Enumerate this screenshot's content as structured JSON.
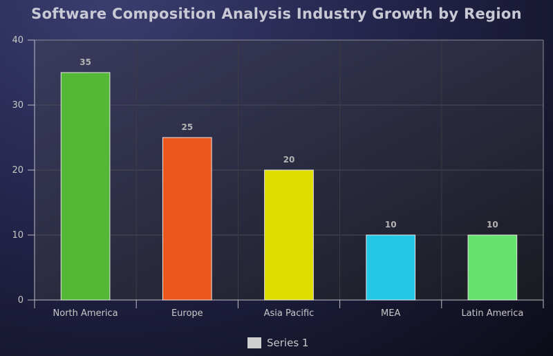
{
  "chart_data": {
    "type": "bar",
    "title": "Software Composition Analysis Industry Growth by Region",
    "categories": [
      "North America",
      "Europe",
      "Asia Pacific",
      "MEA",
      "Latin America"
    ],
    "series": [
      {
        "name": "Series 1",
        "values": [
          35,
          25,
          20,
          10,
          10
        ]
      }
    ],
    "bar_colors": [
      "#55b736",
      "#ea561c",
      "#dede00",
      "#22c8e6",
      "#66e36e"
    ],
    "ylim": [
      0,
      40
    ],
    "yticks": [
      0,
      10,
      20,
      30,
      40
    ],
    "grid": true,
    "legend": "bottom-center",
    "xlabel": "",
    "ylabel": ""
  }
}
